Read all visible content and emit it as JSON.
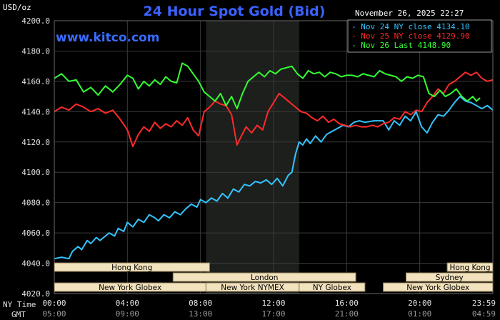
{
  "header": {
    "unit": "USD/oz",
    "title": "24 Hour Spot Gold (Bid)",
    "datetime": "November 26, 2025 22:27",
    "watermark": "www.kitco.com"
  },
  "legend": [
    {
      "dash": "-",
      "label": "Nov 24 NY close 4134.10",
      "color": "#33c4ff"
    },
    {
      "dash": "-",
      "label": "Nov 25 NY close 4129.90",
      "color": "#ff2a2a"
    },
    {
      "dash": "-",
      "label": "Nov 26 Last 4148.90",
      "color": "#33ff33"
    }
  ],
  "sessions": [
    {
      "name": "Hong Kong",
      "row": 0,
      "start": 0,
      "end": 8.5
    },
    {
      "name": "Hong Kong",
      "row": 0,
      "start": 21.5,
      "end": 24
    },
    {
      "name": "London",
      "row": 1,
      "start": 6.5,
      "end": 16.5
    },
    {
      "name": "Sydney",
      "row": 1,
      "start": 19.25,
      "end": 24
    },
    {
      "name": "New York Globex",
      "row": 2,
      "start": 0,
      "end": 8.3
    },
    {
      "name": "New York NYMEX",
      "row": 2,
      "start": 8.3,
      "end": 13.4
    },
    {
      "name": "NY Globex",
      "row": 2,
      "start": 13.4,
      "end": 17
    },
    {
      "name": "New York Globex",
      "row": 2,
      "start": 18,
      "end": 24
    }
  ],
  "row_labels": {
    "ny": "NY Time",
    "gmt": "GMT"
  },
  "colors": {
    "background": "#000000",
    "grid": "#3a3a3a",
    "highlight": "#1c1f1c",
    "session_fill": "#f2e2bd",
    "title": "#3a62ff"
  },
  "chart_data": {
    "type": "line",
    "title": "24 Hour Spot Gold (Bid)",
    "ylabel": "USD/oz",
    "xlabel": "",
    "xlim": [
      0,
      24
    ],
    "ylim": [
      4020,
      4200
    ],
    "grid": true,
    "highlight_range": [
      8.3,
      13.4
    ],
    "yticks": [
      "4020.0",
      "4040.0",
      "4060.0",
      "4080.0",
      "4100.0",
      "4120.0",
      "4140.0",
      "4160.0",
      "4180.0",
      "4200.0"
    ],
    "ytick_values": [
      4020,
      4040,
      4060,
      4080,
      4100,
      4120,
      4140,
      4160,
      4180,
      4200
    ],
    "xticks_ny": [
      "00:00",
      "04:00",
      "08:00",
      "12:00",
      "16:00",
      "20:00",
      "23:59"
    ],
    "xticks_gmt": [
      "05:00",
      "09:00",
      "13:00",
      "17:00",
      "21:00",
      "01:00",
      "04:59"
    ],
    "xtick_values": [
      0,
      4,
      8,
      12,
      16,
      20,
      24
    ],
    "series": [
      {
        "name": "Nov 24 NY close 4134.10",
        "color": "#33c4ff",
        "x": [
          0,
          0.4,
          0.8,
          1.0,
          1.3,
          1.5,
          1.8,
          2.0,
          2.3,
          2.5,
          2.8,
          3.0,
          3.3,
          3.5,
          3.8,
          4.0,
          4.3,
          4.6,
          4.9,
          5.2,
          5.5,
          5.7,
          6.0,
          6.3,
          6.6,
          6.9,
          7.2,
          7.5,
          7.8,
          8.0,
          8.3,
          8.6,
          8.9,
          9.2,
          9.5,
          9.8,
          10.1,
          10.4,
          10.7,
          11.0,
          11.3,
          11.6,
          11.9,
          12.2,
          12.5,
          12.8,
          13.0,
          13.2,
          13.4,
          13.6,
          13.8,
          14.0,
          14.3,
          14.6,
          14.9,
          15.2,
          15.5,
          15.8,
          16.1,
          16.4,
          16.7,
          17.0,
          17.5,
          18.0,
          18.3,
          18.6,
          18.9,
          19.2,
          19.5,
          19.8,
          20.1,
          20.4,
          20.7,
          21.0,
          21.3,
          21.6,
          21.9,
          22.2,
          22.5,
          22.8,
          23.1,
          23.4,
          23.7,
          24.0
        ],
        "y": [
          4043,
          4044,
          4043,
          4048,
          4051,
          4049,
          4055,
          4053,
          4057,
          4055,
          4058,
          4060,
          4058,
          4063,
          4061,
          4067,
          4064,
          4069,
          4067,
          4072,
          4070,
          4068,
          4072,
          4070,
          4074,
          4072,
          4076,
          4079,
          4077,
          4082,
          4080,
          4083,
          4081,
          4086,
          4083,
          4089,
          4087,
          4092,
          4091,
          4094,
          4093,
          4095,
          4092,
          4096,
          4091,
          4098,
          4100,
          4112,
          4120,
          4118,
          4122,
          4119,
          4124,
          4120,
          4125,
          4127,
          4129,
          4131,
          4130,
          4133,
          4134,
          4133,
          4134,
          4134,
          4128,
          4134,
          4131,
          4137,
          4134,
          4140,
          4130,
          4126,
          4133,
          4138,
          4137,
          4141,
          4146,
          4150,
          4147,
          4146,
          4144,
          4142,
          4144,
          4141
        ]
      },
      {
        "name": "Nov 25 NY close 4129.90",
        "color": "#ff2a2a",
        "x": [
          0,
          0.4,
          0.8,
          1.2,
          1.6,
          2.0,
          2.4,
          2.8,
          3.2,
          3.6,
          4.0,
          4.3,
          4.6,
          4.9,
          5.2,
          5.5,
          5.8,
          6.1,
          6.4,
          6.7,
          7.0,
          7.3,
          7.6,
          7.9,
          8.2,
          8.5,
          8.8,
          9.1,
          9.4,
          9.7,
          10.0,
          10.2,
          10.5,
          10.8,
          11.1,
          11.4,
          11.7,
          12.0,
          12.3,
          12.6,
          12.9,
          13.2,
          13.5,
          13.8,
          14.1,
          14.4,
          14.7,
          15.0,
          15.3,
          15.6,
          15.9,
          16.2,
          16.5,
          16.8,
          17.1,
          17.4,
          17.7,
          18.0,
          18.3,
          18.6,
          18.9,
          19.2,
          19.5,
          19.8,
          20.1,
          20.4,
          20.7,
          21.0,
          21.3,
          21.6,
          21.9,
          22.2,
          22.5,
          22.8,
          23.1,
          23.4,
          23.7,
          24.0
        ],
        "y": [
          4140,
          4143,
          4141,
          4145,
          4143,
          4140,
          4142,
          4139,
          4141,
          4135,
          4128,
          4117,
          4125,
          4130,
          4127,
          4133,
          4129,
          4132,
          4130,
          4134,
          4131,
          4136,
          4128,
          4124,
          4140,
          4143,
          4147,
          4145,
          4144,
          4138,
          4118,
          4123,
          4130,
          4126,
          4131,
          4128,
          4140,
          4146,
          4152,
          4149,
          4146,
          4143,
          4140,
          4139,
          4136,
          4134,
          4137,
          4133,
          4135,
          4132,
          4131,
          4130,
          4131,
          4130,
          4130,
          4131,
          4130,
          4132,
          4133,
          4136,
          4135,
          4140,
          4138,
          4141,
          4140,
          4146,
          4150,
          4155,
          4152,
          4158,
          4160,
          4163,
          4166,
          4164,
          4166,
          4162,
          4160,
          4161
        ]
      },
      {
        "name": "Nov 26 Last 4148.90",
        "color": "#33ff33",
        "x": [
          0,
          0.4,
          0.8,
          1.2,
          1.6,
          2.0,
          2.4,
          2.8,
          3.2,
          3.6,
          4.0,
          4.3,
          4.6,
          4.9,
          5.2,
          5.5,
          5.8,
          6.1,
          6.4,
          6.7,
          7.0,
          7.3,
          7.6,
          7.9,
          8.2,
          8.5,
          8.8,
          9.1,
          9.4,
          9.7,
          10.0,
          10.3,
          10.6,
          10.9,
          11.2,
          11.5,
          11.8,
          12.1,
          12.4,
          12.7,
          13.0,
          13.3,
          13.6,
          13.9,
          14.2,
          14.5,
          14.8,
          15.1,
          15.4,
          15.7,
          16.0,
          16.3,
          16.6,
          16.9,
          17.2,
          17.5,
          17.8,
          18.1,
          18.4,
          18.7,
          19.0,
          19.3,
          19.6,
          19.9,
          20.2,
          20.5,
          20.8,
          21.1,
          21.4,
          21.7,
          22.0,
          22.3,
          22.6,
          22.9,
          23.1,
          23.3
        ],
        "y": [
          4162,
          4165,
          4160,
          4161,
          4153,
          4156,
          4151,
          4157,
          4153,
          4158,
          4164,
          4162,
          4155,
          4160,
          4157,
          4161,
          4158,
          4163,
          4160,
          4159,
          4172,
          4170,
          4165,
          4160,
          4153,
          4150,
          4147,
          4152,
          4144,
          4150,
          4142,
          4152,
          4160,
          4163,
          4166,
          4163,
          4167,
          4165,
          4168,
          4169,
          4170,
          4165,
          4162,
          4167,
          4165,
          4166,
          4163,
          4166,
          4165,
          4163,
          4164,
          4164,
          4163,
          4165,
          4164,
          4163,
          4167,
          4165,
          4164,
          4163,
          4160,
          4163,
          4162,
          4164,
          4163,
          4152,
          4150,
          4154,
          4150,
          4152,
          4155,
          4150,
          4147,
          4150,
          4147,
          4149
        ]
      }
    ]
  }
}
